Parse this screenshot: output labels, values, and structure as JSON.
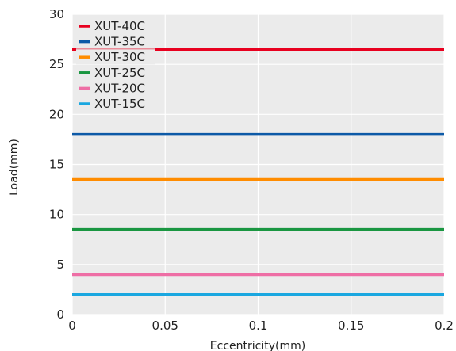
{
  "chart_data": {
    "type": "line",
    "xlabel": "Eccentricity(mm)",
    "ylabel": "Load(mm)",
    "xlim": [
      0,
      0.2
    ],
    "ylim": [
      0,
      30
    ],
    "x_ticks": [
      0,
      0.05,
      0.1,
      0.15,
      0.2
    ],
    "x_tick_labels": [
      "0",
      "0.05",
      "0.1",
      "0.15",
      "0.2"
    ],
    "y_ticks": [
      0,
      5,
      10,
      15,
      20,
      25,
      30
    ],
    "y_tick_labels": [
      "0",
      "5",
      "10",
      "15",
      "20",
      "25",
      "30"
    ],
    "grid": true,
    "background_color": "#ebebeb",
    "legend_position": "top-left",
    "series": [
      {
        "name": "XUT-40C",
        "color": "#e8001f",
        "x": [
          0,
          0.2
        ],
        "y": [
          26.5,
          26.5
        ]
      },
      {
        "name": "XUT-35C",
        "color": "#0d5aa7",
        "x": [
          0,
          0.2
        ],
        "y": [
          18,
          18
        ]
      },
      {
        "name": "XUT-30C",
        "color": "#ff8c00",
        "x": [
          0,
          0.2
        ],
        "y": [
          13.5,
          13.5
        ]
      },
      {
        "name": "XUT-25C",
        "color": "#1a9641",
        "x": [
          0,
          0.2
        ],
        "y": [
          8.5,
          8.5
        ]
      },
      {
        "name": "XUT-20C",
        "color": "#ee6ea5",
        "x": [
          0,
          0.2
        ],
        "y": [
          4,
          4
        ]
      },
      {
        "name": "XUT-15C",
        "color": "#1aa7e0",
        "x": [
          0,
          0.2
        ],
        "y": [
          2,
          2
        ]
      }
    ]
  }
}
